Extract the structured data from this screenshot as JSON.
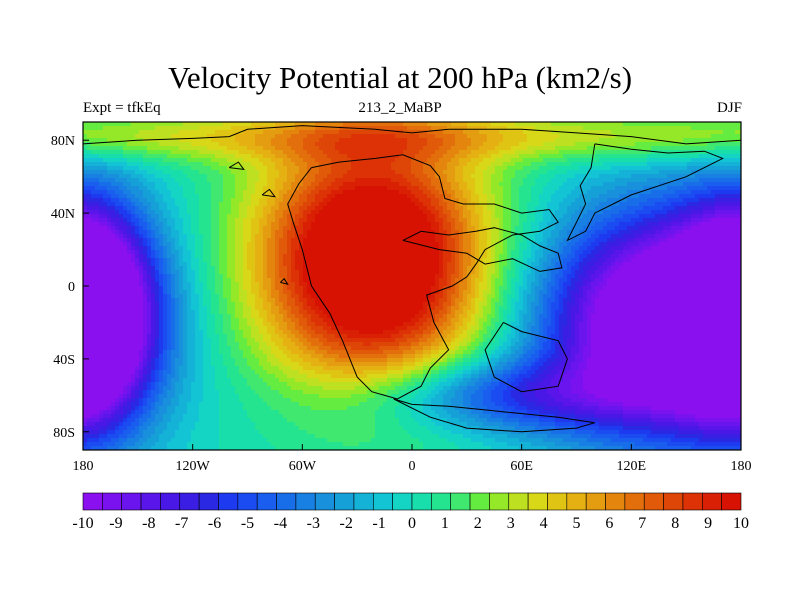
{
  "figure": {
    "title": "Velocity Potential at 200 hPa (km2/s)",
    "left_string": "Expt = tfkEq",
    "center_string": "213_2_MaBP",
    "right_string": "DJF"
  },
  "map": {
    "projection": "cylindrical equidistant",
    "lon_range": [
      -180,
      180
    ],
    "lat_range": [
      -90,
      90
    ],
    "lon_tick_labels": [
      "180",
      "120W",
      "60W",
      "0",
      "60E",
      "120E",
      "180"
    ],
    "lat_tick_labels": [
      "80N",
      "40N",
      "0",
      "40S",
      "80S"
    ],
    "continent_outlines": "paleogeographic land-sea boundaries"
  },
  "colorbar": {
    "levels": [
      -10,
      -9.5,
      -9,
      -8.5,
      -8,
      -7.5,
      -7,
      -6.5,
      -6,
      -5.5,
      -5,
      -4.5,
      -4,
      -3.5,
      -3,
      -2.5,
      -2,
      -1.5,
      -1,
      -0.5,
      0,
      0.5,
      1,
      1.5,
      2,
      2.5,
      3,
      3.5,
      4,
      4.5,
      5,
      5.5,
      6,
      6.5,
      7,
      7.5,
      8,
      8.5,
      9,
      9.5,
      10
    ],
    "tick_labels": [
      "-10",
      "-9",
      "-8",
      "-7",
      "-6",
      "-5",
      "-4",
      "-3",
      "-2",
      "-1",
      "0",
      "1",
      "2",
      "3",
      "4",
      "5",
      "6",
      "7",
      "8",
      "9",
      "10"
    ],
    "colors": [
      "#8a10f0",
      "#7a12ef",
      "#6a14ee",
      "#5a16ea",
      "#4a18e6",
      "#3a1ee4",
      "#2a28e2",
      "#1e3af0",
      "#1a4cf2",
      "#1a5ef0",
      "#186ee8",
      "#1880e2",
      "#1890dc",
      "#16a0d8",
      "#14b2d6",
      "#12c4d4",
      "#14d4c4",
      "#18deac",
      "#24e490",
      "#40e870",
      "#64ec40",
      "#94e828",
      "#bde020",
      "#d8d818",
      "#e0c414",
      "#e4b012",
      "#e49c10",
      "#e4860e",
      "#e26e0c",
      "#e05a0a",
      "#de4608",
      "#dc3206",
      "#da2004",
      "#d81202"
    ]
  },
  "chart_data": {
    "type": "heatmap",
    "title": "Velocity Potential at 200 hPa (km2/s)",
    "variable": "200 hPa velocity potential",
    "units": "km2/s",
    "season": "DJF",
    "experiment": "tfkEq",
    "case": "213_2_MaBP",
    "xlim": [
      -180,
      180
    ],
    "ylim": [
      -90,
      90
    ],
    "zlim": [
      -10,
      10
    ],
    "features": [
      {
        "type": "maximum",
        "lon": -20,
        "lat": 15,
        "value": 10
      },
      {
        "type": "minimum",
        "lon": 140,
        "lat": -20,
        "value": -10
      },
      {
        "type": "minimum",
        "lon": -175,
        "lat": -15,
        "value": -10
      }
    ]
  }
}
